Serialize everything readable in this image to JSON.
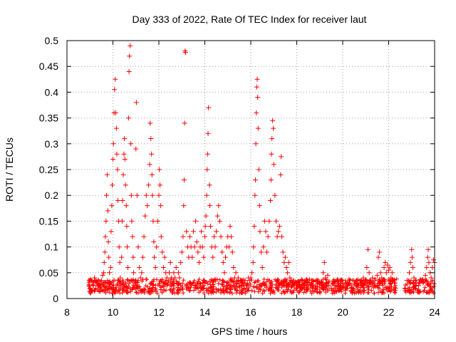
{
  "chart_data": {
    "type": "scatter",
    "title": "Day 333 of 2022, Rate Of TEC Index for receiver laut",
    "xlabel": "GPS time / hours",
    "ylabel": "ROTI / TECUs",
    "xlim": [
      8,
      24
    ],
    "ylim": [
      0,
      0.5
    ],
    "x_ticks": [
      8,
      10,
      12,
      14,
      16,
      18,
      20,
      22,
      24
    ],
    "x_tick_labels": [
      "8",
      "10",
      "12",
      "14",
      "16",
      "18",
      "20",
      "22",
      "24"
    ],
    "y_ticks": [
      0,
      0.05,
      0.1,
      0.15,
      0.2,
      0.25,
      0.3,
      0.35,
      0.4,
      0.45,
      0.5
    ],
    "y_tick_labels": [
      "0",
      "0.05",
      "0.1",
      "0.15",
      "0.2",
      "0.25",
      "0.3",
      "0.35",
      "0.4",
      "0.45",
      "0.5"
    ],
    "grid": true,
    "marker": "plus",
    "color": "#ff0000",
    "series": [
      {
        "points": [
          [
            9.0,
            0.02
          ],
          [
            9.05,
            0.035
          ],
          [
            9.1,
            0.015
          ],
          [
            9.15,
            0.025
          ],
          [
            9.2,
            0.04
          ],
          [
            9.25,
            0.02
          ],
          [
            9.3,
            0.03
          ],
          [
            9.35,
            0.018
          ],
          [
            9.4,
            0.028
          ],
          [
            9.45,
            0.022
          ],
          [
            9.5,
            0.035
          ],
          [
            9.55,
            0.045
          ],
          [
            9.6,
            0.05
          ],
          [
            9.62,
            0.07
          ],
          [
            9.65,
            0.09
          ],
          [
            9.67,
            0.12
          ],
          [
            9.7,
            0.15
          ],
          [
            9.72,
            0.2
          ],
          [
            9.75,
            0.24
          ],
          [
            9.78,
            0.17
          ],
          [
            9.8,
            0.11
          ],
          [
            9.82,
            0.08
          ],
          [
            9.85,
            0.05
          ],
          [
            9.88,
            0.03
          ],
          [
            9.9,
            0.06
          ],
          [
            9.92,
            0.13
          ],
          [
            9.95,
            0.18
          ],
          [
            9.97,
            0.22
          ],
          [
            10.0,
            0.27
          ],
          [
            10.02,
            0.3
          ],
          [
            10.05,
            0.36
          ],
          [
            10.07,
            0.405
          ],
          [
            10.1,
            0.425
          ],
          [
            10.12,
            0.36
          ],
          [
            10.15,
            0.33
          ],
          [
            10.17,
            0.28
          ],
          [
            10.2,
            0.25
          ],
          [
            10.22,
            0.19
          ],
          [
            10.25,
            0.15
          ],
          [
            10.27,
            0.1
          ],
          [
            10.3,
            0.07
          ],
          [
            10.32,
            0.04
          ],
          [
            10.35,
            0.03
          ],
          [
            10.38,
            0.08
          ],
          [
            10.4,
            0.15
          ],
          [
            10.42,
            0.19
          ],
          [
            10.45,
            0.24
          ],
          [
            10.48,
            0.28
          ],
          [
            10.5,
            0.31
          ],
          [
            10.52,
            0.27
          ],
          [
            10.55,
            0.22
          ],
          [
            10.58,
            0.18
          ],
          [
            10.6,
            0.14
          ],
          [
            10.62,
            0.1
          ],
          [
            10.65,
            0.06
          ],
          [
            10.68,
            0.35
          ],
          [
            10.7,
            0.44
          ],
          [
            10.72,
            0.47
          ],
          [
            10.75,
            0.49
          ],
          [
            10.78,
            0.3
          ],
          [
            10.8,
            0.2
          ],
          [
            10.82,
            0.15
          ],
          [
            10.85,
            0.12
          ],
          [
            10.88,
            0.08
          ],
          [
            10.9,
            0.05
          ],
          [
            10.95,
            0.03
          ],
          [
            11.0,
            0.29
          ],
          [
            11.02,
            0.38
          ],
          [
            11.05,
            0.2
          ],
          [
            11.1,
            0.1
          ],
          [
            11.15,
            0.06
          ],
          [
            11.2,
            0.04
          ],
          [
            11.25,
            0.05
          ],
          [
            11.3,
            0.08
          ],
          [
            11.35,
            0.12
          ],
          [
            11.4,
            0.16
          ],
          [
            11.45,
            0.2
          ],
          [
            11.5,
            0.18
          ],
          [
            11.55,
            0.22
          ],
          [
            11.6,
            0.26
          ],
          [
            11.62,
            0.34
          ],
          [
            11.65,
            0.31
          ],
          [
            11.68,
            0.28
          ],
          [
            11.7,
            0.24
          ],
          [
            11.72,
            0.2
          ],
          [
            11.75,
            0.15
          ],
          [
            11.78,
            0.11
          ],
          [
            11.8,
            0.08
          ],
          [
            11.85,
            0.06
          ],
          [
            11.9,
            0.1
          ],
          [
            11.95,
            0.15
          ],
          [
            12.0,
            0.2
          ],
          [
            12.02,
            0.25
          ],
          [
            12.05,
            0.22
          ],
          [
            12.08,
            0.18
          ],
          [
            12.1,
            0.12
          ],
          [
            12.15,
            0.09
          ],
          [
            12.2,
            0.06
          ],
          [
            12.25,
            0.08
          ],
          [
            12.3,
            0.05
          ],
          [
            12.35,
            0.04
          ],
          [
            12.4,
            0.03
          ],
          [
            12.45,
            0.05
          ],
          [
            12.5,
            0.07
          ],
          [
            12.55,
            0.04
          ],
          [
            12.6,
            0.03
          ],
          [
            12.65,
            0.05
          ],
          [
            12.7,
            0.04
          ],
          [
            12.75,
            0.06
          ],
          [
            12.8,
            0.03
          ],
          [
            12.85,
            0.05
          ],
          [
            12.9,
            0.04
          ],
          [
            12.95,
            0.07
          ],
          [
            13.0,
            0.09
          ],
          [
            13.05,
            0.12
          ],
          [
            13.08,
            0.18
          ],
          [
            13.1,
            0.23
          ],
          [
            13.12,
            0.34
          ],
          [
            13.14,
            0.48
          ],
          [
            13.16,
            0.477
          ],
          [
            13.2,
            0.13
          ],
          [
            13.25,
            0.1
          ],
          [
            13.3,
            0.08
          ],
          [
            13.35,
            0.12
          ],
          [
            13.4,
            0.1
          ],
          [
            13.45,
            0.08
          ],
          [
            13.5,
            0.13
          ],
          [
            13.55,
            0.1
          ],
          [
            13.6,
            0.15
          ],
          [
            13.65,
            0.11
          ],
          [
            13.7,
            0.09
          ],
          [
            13.75,
            0.07
          ],
          [
            13.8,
            0.1
          ],
          [
            13.85,
            0.13
          ],
          [
            13.9,
            0.1
          ],
          [
            13.95,
            0.08
          ],
          [
            14.0,
            0.12
          ],
          [
            14.02,
            0.14
          ],
          [
            14.05,
            0.16
          ],
          [
            14.08,
            0.2
          ],
          [
            14.1,
            0.25
          ],
          [
            14.12,
            0.28
          ],
          [
            14.14,
            0.32
          ],
          [
            14.16,
            0.37
          ],
          [
            14.2,
            0.22
          ],
          [
            14.22,
            0.18
          ],
          [
            14.25,
            0.14
          ],
          [
            14.3,
            0.1
          ],
          [
            14.35,
            0.08
          ],
          [
            14.4,
            0.12
          ],
          [
            14.45,
            0.1
          ],
          [
            14.5,
            0.13
          ],
          [
            14.55,
            0.16
          ],
          [
            14.6,
            0.18
          ],
          [
            14.65,
            0.15
          ],
          [
            14.7,
            0.12
          ],
          [
            14.75,
            0.09
          ],
          [
            14.8,
            0.07
          ],
          [
            14.85,
            0.05
          ],
          [
            14.9,
            0.08
          ],
          [
            14.95,
            0.1
          ],
          [
            15.0,
            0.12
          ],
          [
            15.05,
            0.1
          ],
          [
            15.1,
            0.14
          ],
          [
            15.15,
            0.12
          ],
          [
            15.2,
            0.09
          ],
          [
            15.25,
            0.06
          ],
          [
            15.3,
            0.04
          ],
          [
            15.35,
            0.05
          ],
          [
            15.4,
            0.03
          ],
          [
            15.45,
            0.04
          ],
          [
            15.5,
            0.03
          ],
          [
            15.55,
            0.035
          ],
          [
            15.6,
            0.025
          ],
          [
            15.65,
            0.03
          ],
          [
            15.7,
            0.02
          ],
          [
            15.75,
            0.035
          ],
          [
            15.8,
            0.025
          ],
          [
            15.85,
            0.03
          ],
          [
            15.9,
            0.04
          ],
          [
            15.95,
            0.035
          ],
          [
            16.0,
            0.04
          ],
          [
            16.05,
            0.05
          ],
          [
            16.1,
            0.07
          ],
          [
            16.12,
            0.1
          ],
          [
            16.15,
            0.14
          ],
          [
            16.18,
            0.2
          ],
          [
            16.2,
            0.23
          ],
          [
            16.22,
            0.3
          ],
          [
            16.24,
            0.36
          ],
          [
            16.26,
            0.41
          ],
          [
            16.28,
            0.425
          ],
          [
            16.3,
            0.39
          ],
          [
            16.32,
            0.33
          ],
          [
            16.35,
            0.25
          ],
          [
            16.38,
            0.18
          ],
          [
            16.4,
            0.13
          ],
          [
            16.45,
            0.09
          ],
          [
            16.5,
            0.06
          ],
          [
            16.55,
            0.1
          ],
          [
            16.6,
            0.15
          ],
          [
            16.65,
            0.13
          ],
          [
            16.7,
            0.09
          ],
          [
            16.75,
            0.12
          ],
          [
            16.8,
            0.15
          ],
          [
            16.85,
            0.19
          ],
          [
            16.88,
            0.23
          ],
          [
            16.9,
            0.28
          ],
          [
            16.92,
            0.31
          ],
          [
            16.95,
            0.345
          ],
          [
            16.98,
            0.33
          ],
          [
            17.0,
            0.26
          ],
          [
            17.05,
            0.2
          ],
          [
            17.1,
            0.15
          ],
          [
            17.15,
            0.12
          ],
          [
            17.2,
            0.13
          ],
          [
            17.25,
            0.14
          ],
          [
            17.3,
            0.24
          ],
          [
            17.32,
            0.275
          ],
          [
            17.35,
            0.12
          ],
          [
            17.4,
            0.09
          ],
          [
            17.45,
            0.07
          ],
          [
            17.5,
            0.08
          ],
          [
            17.55,
            0.06
          ],
          [
            17.6,
            0.05
          ],
          [
            17.65,
            0.07
          ],
          [
            17.7,
            0.04
          ],
          [
            17.75,
            0.035
          ],
          [
            17.8,
            0.03
          ],
          [
            17.9,
            0.025
          ],
          [
            18.0,
            0.02
          ],
          [
            18.1,
            0.025
          ],
          [
            18.2,
            0.02
          ],
          [
            18.3,
            0.028
          ],
          [
            18.4,
            0.018
          ],
          [
            18.5,
            0.022
          ],
          [
            18.6,
            0.025
          ],
          [
            18.7,
            0.015
          ],
          [
            18.8,
            0.02
          ],
          [
            18.9,
            0.018
          ],
          [
            19.0,
            0.022
          ],
          [
            19.1,
            0.028
          ],
          [
            19.15,
            0.05
          ],
          [
            19.2,
            0.07
          ],
          [
            19.25,
            0.04
          ],
          [
            19.3,
            0.03
          ],
          [
            19.35,
            0.045
          ],
          [
            19.4,
            0.025
          ],
          [
            19.5,
            0.02
          ],
          [
            19.6,
            0.03
          ],
          [
            19.7,
            0.02
          ],
          [
            19.8,
            0.025
          ],
          [
            19.9,
            0.035
          ],
          [
            20.0,
            0.03
          ],
          [
            20.1,
            0.02
          ],
          [
            20.2,
            0.025
          ],
          [
            20.3,
            0.03
          ],
          [
            20.4,
            0.02
          ],
          [
            20.5,
            0.028
          ],
          [
            20.6,
            0.035
          ],
          [
            20.7,
            0.025
          ],
          [
            20.8,
            0.03
          ],
          [
            20.9,
            0.04
          ],
          [
            21.0,
            0.035
          ],
          [
            21.05,
            0.06
          ],
          [
            21.1,
            0.095
          ],
          [
            21.15,
            0.05
          ],
          [
            21.2,
            0.03
          ],
          [
            21.3,
            0.04
          ],
          [
            21.4,
            0.035
          ],
          [
            21.5,
            0.045
          ],
          [
            21.55,
            0.08
          ],
          [
            21.6,
            0.09
          ],
          [
            21.65,
            0.05
          ],
          [
            21.7,
            0.04
          ],
          [
            21.8,
            0.06
          ],
          [
            21.85,
            0.07
          ],
          [
            21.9,
            0.05
          ],
          [
            21.95,
            0.065
          ],
          [
            22.0,
            0.055
          ],
          [
            22.05,
            0.06
          ],
          [
            22.1,
            0.04
          ],
          [
            22.15,
            0.05
          ],
          [
            22.2,
            0.035
          ],
          [
            22.25,
            0.03
          ],
          [
            22.3,
            0.02
          ],
          [
            22.7,
            0.02
          ],
          [
            22.8,
            0.035
          ],
          [
            22.9,
            0.05
          ],
          [
            22.95,
            0.07
          ],
          [
            23.0,
            0.095
          ],
          [
            23.02,
            0.08
          ],
          [
            23.05,
            0.06
          ],
          [
            23.1,
            0.04
          ],
          [
            23.2,
            0.03
          ],
          [
            23.3,
            0.025
          ],
          [
            23.4,
            0.035
          ],
          [
            23.5,
            0.03
          ],
          [
            23.6,
            0.045
          ],
          [
            23.65,
            0.06
          ],
          [
            23.7,
            0.08
          ],
          [
            23.72,
            0.095
          ],
          [
            23.75,
            0.07
          ],
          [
            23.8,
            0.05
          ],
          [
            23.85,
            0.04
          ],
          [
            23.9,
            0.06
          ],
          [
            23.95,
            0.075
          ],
          [
            24.0,
            0.07
          ]
        ]
      }
    ]
  }
}
